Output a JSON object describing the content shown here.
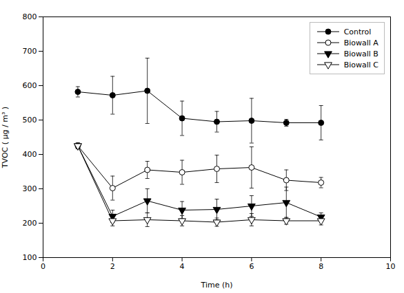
{
  "chart_data": {
    "type": "line",
    "xlabel": "Time (h)",
    "ylabel": "TVOC ( μg / m³ )",
    "x": [
      1,
      2,
      3,
      4,
      5,
      6,
      7,
      8
    ],
    "series": [
      {
        "name": "Control",
        "color": "#000000",
        "marker": "circle",
        "values": [
          582,
          572,
          585,
          505,
          495,
          498,
          492,
          492
        ],
        "yerr": [
          15,
          55,
          95,
          50,
          30,
          65,
          10,
          50
        ]
      },
      {
        "name": "Biowall A",
        "color": "#000000",
        "marker": "circle-open",
        "values": [
          425,
          302,
          355,
          348,
          358,
          362,
          325,
          318
        ],
        "yerr": [
          8,
          35,
          25,
          35,
          40,
          60,
          30,
          15
        ]
      },
      {
        "name": "Biowall B",
        "color": "#000000",
        "marker": "triangle-down",
        "values": [
          425,
          220,
          265,
          238,
          240,
          250,
          260,
          218
        ],
        "yerr": [
          8,
          18,
          35,
          25,
          30,
          30,
          45,
          12
        ]
      },
      {
        "name": "Biowall C",
        "color": "#000000",
        "marker": "triangle-down-open",
        "values": [
          425,
          207,
          210,
          207,
          203,
          210,
          207,
          207
        ],
        "yerr": [
          8,
          15,
          20,
          15,
          12,
          18,
          10,
          12
        ]
      }
    ],
    "xlim": [
      0,
      10
    ],
    "xticks": [
      0,
      2,
      4,
      6,
      8,
      10
    ],
    "ylim": [
      100,
      800
    ],
    "yticks": [
      100,
      200,
      300,
      400,
      500,
      600,
      700,
      800
    ],
    "legend": "upper right",
    "grid": false
  }
}
